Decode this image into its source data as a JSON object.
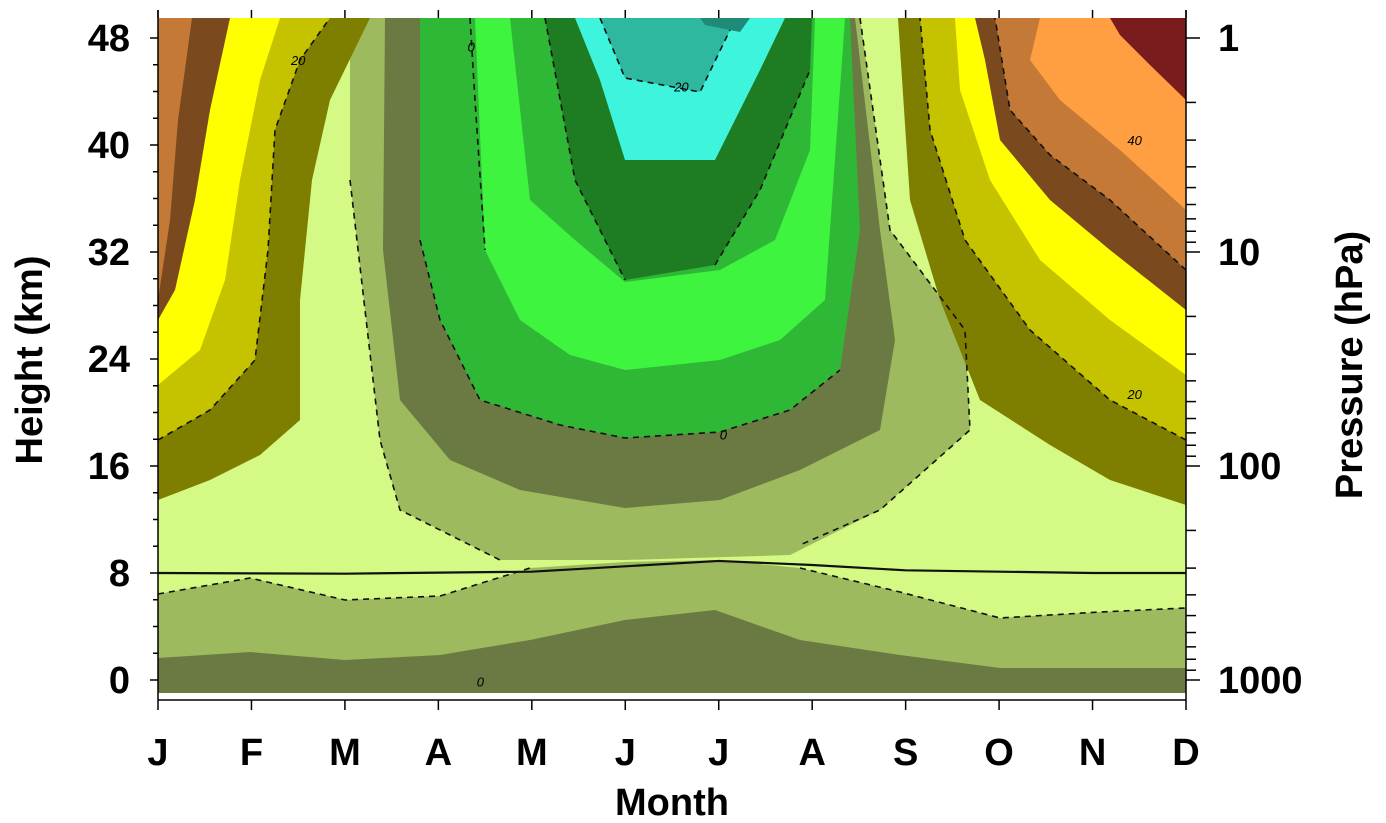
{
  "chart_data": {
    "type": "heatmap",
    "title": "",
    "xlabel": "Month",
    "ylabel_left": "Height (km)",
    "ylabel_right": "Pressure (hPa)",
    "x_categories": [
      "J",
      "F",
      "M",
      "A",
      "M",
      "J",
      "J",
      "A",
      "S",
      "O",
      "N",
      "D"
    ],
    "y_left_ticks": [
      0,
      8,
      16,
      24,
      32,
      40,
      48
    ],
    "y_left_tick_labels": [
      "0",
      "8",
      "16",
      "24",
      "32",
      "40",
      "48"
    ],
    "y_left_range": [
      -1,
      49
    ],
    "y_right_ticks": [
      1000,
      100,
      10,
      1
    ],
    "y_right_tick_labels": [
      "1000",
      "100",
      "10",
      "1"
    ],
    "y_right_scale": "log",
    "grid": false,
    "tropopause_height_km": 8,
    "zero_wind_contour_km": [
      8,
      8,
      5.5,
      6,
      7.5,
      9,
      8,
      8.5,
      13,
      9,
      5,
      5
    ],
    "contour_labels": [
      {
        "text": "20",
        "month": "F",
        "height_km": 46
      },
      {
        "text": "0",
        "month": "A",
        "height_km": 47
      },
      {
        "text": "20",
        "month": "J",
        "height_km": 44
      },
      {
        "text": "0",
        "month": "J",
        "height_km": 18
      },
      {
        "text": "40",
        "month": "N",
        "height_km": 40
      },
      {
        "text": "20",
        "month": "D",
        "height_km": 21
      },
      {
        "text": "0",
        "month": "A",
        "height_km": -0.5
      }
    ],
    "colors": {
      "bands": [
        "#6b7a42",
        "#9dba5e",
        "#d4f985",
        "#6b7a42",
        "#2fb836",
        "#3ef43f",
        "#1e7c22",
        "#3ef4dc",
        "#2fb8a0",
        "#7e7f00",
        "#c5c200",
        "#ffff00",
        "#7a4a1e",
        "#c47a36",
        "#ff9f41",
        "#7a1b1e"
      ]
    }
  }
}
